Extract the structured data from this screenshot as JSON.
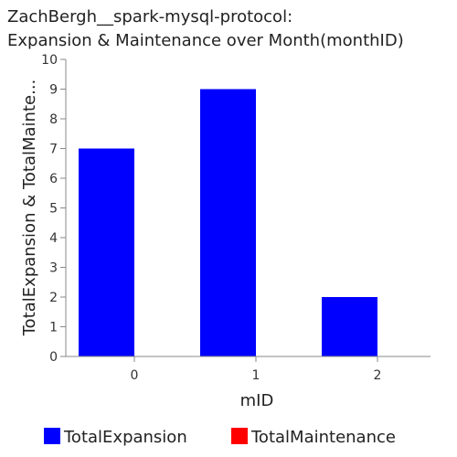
{
  "chart_data": {
    "type": "bar",
    "title_lines": [
      "ZachBergh__spark-mysql-protocol:",
      "Expansion & Maintenance over Month(monthID)"
    ],
    "xlabel": "mID",
    "ylabel": "TotalExpansion & TotalMainte...",
    "categories": [
      "0",
      "1",
      "2"
    ],
    "series": [
      {
        "name": "TotalExpansion",
        "color": "#0000ff",
        "values": [
          7,
          9,
          2
        ]
      },
      {
        "name": "TotalMaintenance",
        "color": "#ff0000",
        "values": [
          0,
          0,
          0
        ]
      }
    ],
    "ylim": [
      0,
      10
    ],
    "yticks": [
      "0",
      "1",
      "2",
      "3",
      "4",
      "5",
      "6",
      "7",
      "8",
      "9",
      "10"
    ],
    "grid": false,
    "legend_position": "bottom"
  }
}
